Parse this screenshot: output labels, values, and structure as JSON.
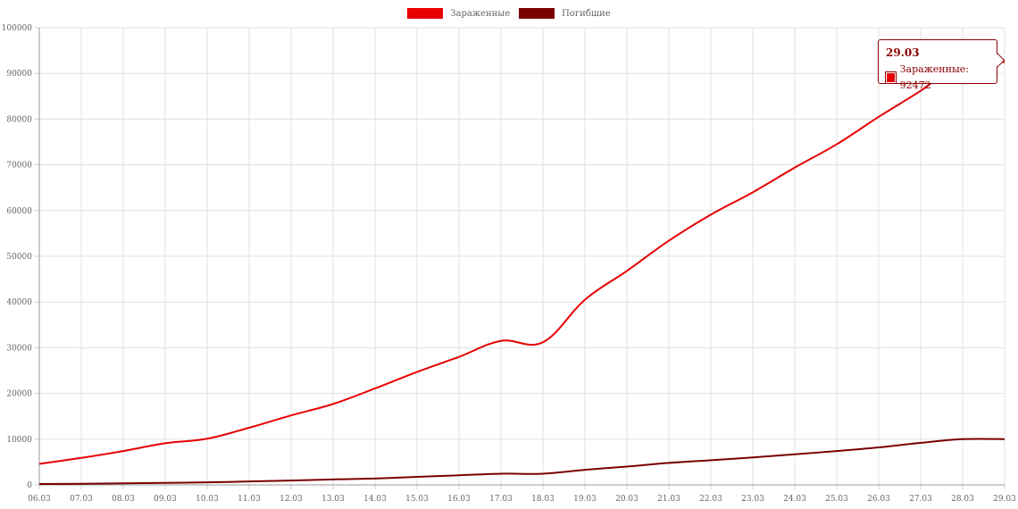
{
  "chart_data": {
    "type": "line",
    "title": "",
    "xlabel": "",
    "ylabel": "",
    "categories": [
      "06.03",
      "07.03",
      "08.03",
      "09.03",
      "10.03",
      "11.03",
      "12.03",
      "13.03",
      "14.03",
      "15.03",
      "16.03",
      "17.03",
      "18.03",
      "19.03",
      "20.03",
      "21.03",
      "22.03",
      "23.03",
      "24.03",
      "25.03",
      "26.03",
      "27.03",
      "28.03",
      "29.03"
    ],
    "ylim": [
      0,
      100000
    ],
    "yticks": [
      0,
      10000,
      20000,
      30000,
      40000,
      50000,
      60000,
      70000,
      80000,
      90000,
      100000
    ],
    "grid": true,
    "legend_position": "top-center",
    "series": [
      {
        "name": "Зараженные",
        "color": "#e60000",
        "values": [
          4600,
          5900,
          7400,
          9100,
          10100,
          12500,
          15200,
          17700,
          21100,
          24700,
          28000,
          31500,
          31200,
          40500,
          46800,
          53400,
          59100,
          64000,
          69400,
          74500,
          80500,
          86200,
          92472,
          92472
        ]
      },
      {
        "name": "Погибшие",
        "color": "#7a0000",
        "values": [
          200,
          250,
          350,
          450,
          550,
          750,
          950,
          1200,
          1400,
          1750,
          2100,
          2450,
          2450,
          3300,
          4000,
          4800,
          5400,
          6000,
          6700,
          7400,
          8200,
          9200,
          10000,
          10000
        ]
      }
    ]
  },
  "tooltip": {
    "title": "29.03",
    "series_name": "Зараженные",
    "value": "92472",
    "label": "Зараженные: 92472",
    "color": "#e60000",
    "border_color": "#8b0000"
  }
}
